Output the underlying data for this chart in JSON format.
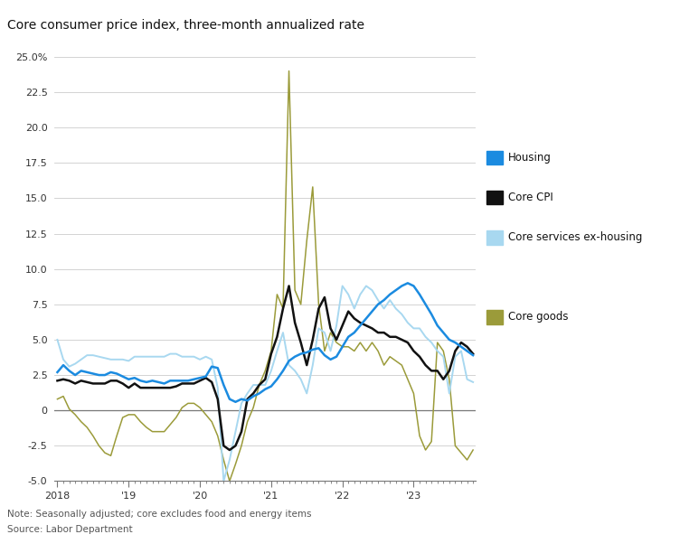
{
  "title": "Core consumer price index, three-month annualized rate",
  "note": "Note: Seasonally adjusted; core excludes food and energy items",
  "source": "Source: Labor Department",
  "ylim": [
    -5.0,
    25.5
  ],
  "yticks": [
    -5.0,
    -2.5,
    0,
    2.5,
    5.0,
    7.5,
    10.0,
    12.5,
    15.0,
    17.5,
    20.0,
    22.5,
    25.0
  ],
  "ytick_labels": [
    "-5.0",
    "-2.5",
    "0",
    "2.5",
    "5.0",
    "7.5",
    "10.0",
    "12.5",
    "15.0",
    "17.5",
    "20.0",
    "22.5",
    "25.0%"
  ],
  "xtick_positions": [
    0,
    12,
    24,
    36,
    48,
    60
  ],
  "xtick_labels": [
    "2018",
    "'19",
    "'20",
    "'21",
    "'22",
    "'23"
  ],
  "colors": {
    "housing": "#1B8BE0",
    "core_cpi": "#111111",
    "core_services": "#A8D8F0",
    "core_goods": "#9B9B3A"
  },
  "housing": [
    2.7,
    3.2,
    2.8,
    2.5,
    2.8,
    2.7,
    2.6,
    2.5,
    2.5,
    2.7,
    2.6,
    2.4,
    2.2,
    2.3,
    2.1,
    2.0,
    2.1,
    2.0,
    1.9,
    2.1,
    2.1,
    2.1,
    2.1,
    2.2,
    2.3,
    2.4,
    3.1,
    3.0,
    1.8,
    0.8,
    0.6,
    0.8,
    0.7,
    1.0,
    1.2,
    1.5,
    1.7,
    2.2,
    2.8,
    3.5,
    3.8,
    4.0,
    4.1,
    4.3,
    4.4,
    3.9,
    3.6,
    3.8,
    4.5,
    5.2,
    5.5,
    6.0,
    6.5,
    7.0,
    7.5,
    7.8,
    8.2,
    8.5,
    8.8,
    9.0,
    8.8,
    8.2,
    7.5,
    6.8,
    6.0,
    5.5,
    5.0,
    4.8,
    4.5,
    4.2,
    3.9
  ],
  "core_cpi": [
    2.1,
    2.2,
    2.1,
    1.9,
    2.1,
    2.0,
    1.9,
    1.9,
    1.9,
    2.1,
    2.1,
    1.9,
    1.6,
    1.9,
    1.6,
    1.6,
    1.6,
    1.6,
    1.6,
    1.6,
    1.7,
    1.9,
    1.9,
    1.9,
    2.1,
    2.3,
    2.0,
    0.8,
    -2.5,
    -2.8,
    -2.5,
    -1.5,
    0.8,
    1.2,
    1.8,
    2.2,
    4.0,
    5.2,
    7.2,
    8.8,
    6.2,
    4.8,
    3.2,
    5.0,
    7.2,
    8.0,
    5.8,
    5.0,
    6.0,
    7.0,
    6.5,
    6.2,
    6.0,
    5.8,
    5.5,
    5.5,
    5.2,
    5.2,
    5.0,
    4.8,
    4.2,
    3.8,
    3.2,
    2.8,
    2.8,
    2.2,
    2.8,
    4.2,
    4.8,
    4.5,
    4.0
  ],
  "core_services": [
    5.0,
    3.6,
    3.1,
    3.3,
    3.6,
    3.9,
    3.9,
    3.8,
    3.7,
    3.6,
    3.6,
    3.6,
    3.5,
    3.8,
    3.8,
    3.8,
    3.8,
    3.8,
    3.8,
    4.0,
    4.0,
    3.8,
    3.8,
    3.8,
    3.6,
    3.8,
    3.6,
    1.6,
    -5.0,
    -3.5,
    -1.5,
    0.5,
    1.2,
    1.8,
    1.8,
    1.8,
    2.8,
    4.2,
    5.5,
    3.2,
    2.8,
    2.2,
    1.2,
    3.2,
    5.8,
    5.5,
    4.2,
    6.0,
    8.8,
    8.2,
    7.2,
    8.2,
    8.8,
    8.5,
    7.8,
    7.2,
    7.8,
    7.2,
    6.8,
    6.2,
    5.8,
    5.8,
    5.2,
    4.8,
    4.2,
    3.8,
    1.2,
    3.8,
    4.2,
    2.2,
    2.0
  ],
  "core_goods": [
    0.8,
    1.0,
    0.1,
    -0.3,
    -0.8,
    -1.2,
    -1.8,
    -2.5,
    -3.0,
    -3.2,
    -1.8,
    -0.5,
    -0.3,
    -0.3,
    -0.8,
    -1.2,
    -1.5,
    -1.5,
    -1.5,
    -1.0,
    -0.5,
    0.2,
    0.5,
    0.5,
    0.2,
    -0.3,
    -0.8,
    -1.8,
    -3.5,
    -5.0,
    -3.8,
    -2.5,
    -0.8,
    0.2,
    1.8,
    2.8,
    4.2,
    8.2,
    7.2,
    24.0,
    8.5,
    7.5,
    12.0,
    15.8,
    7.5,
    4.2,
    5.5,
    4.8,
    4.5,
    4.5,
    4.2,
    4.8,
    4.2,
    4.8,
    4.2,
    3.2,
    3.8,
    3.5,
    3.2,
    2.2,
    1.2,
    -1.8,
    -2.8,
    -2.2,
    4.8,
    4.2,
    2.2,
    -2.5,
    -3.0,
    -3.5,
    -2.8
  ]
}
